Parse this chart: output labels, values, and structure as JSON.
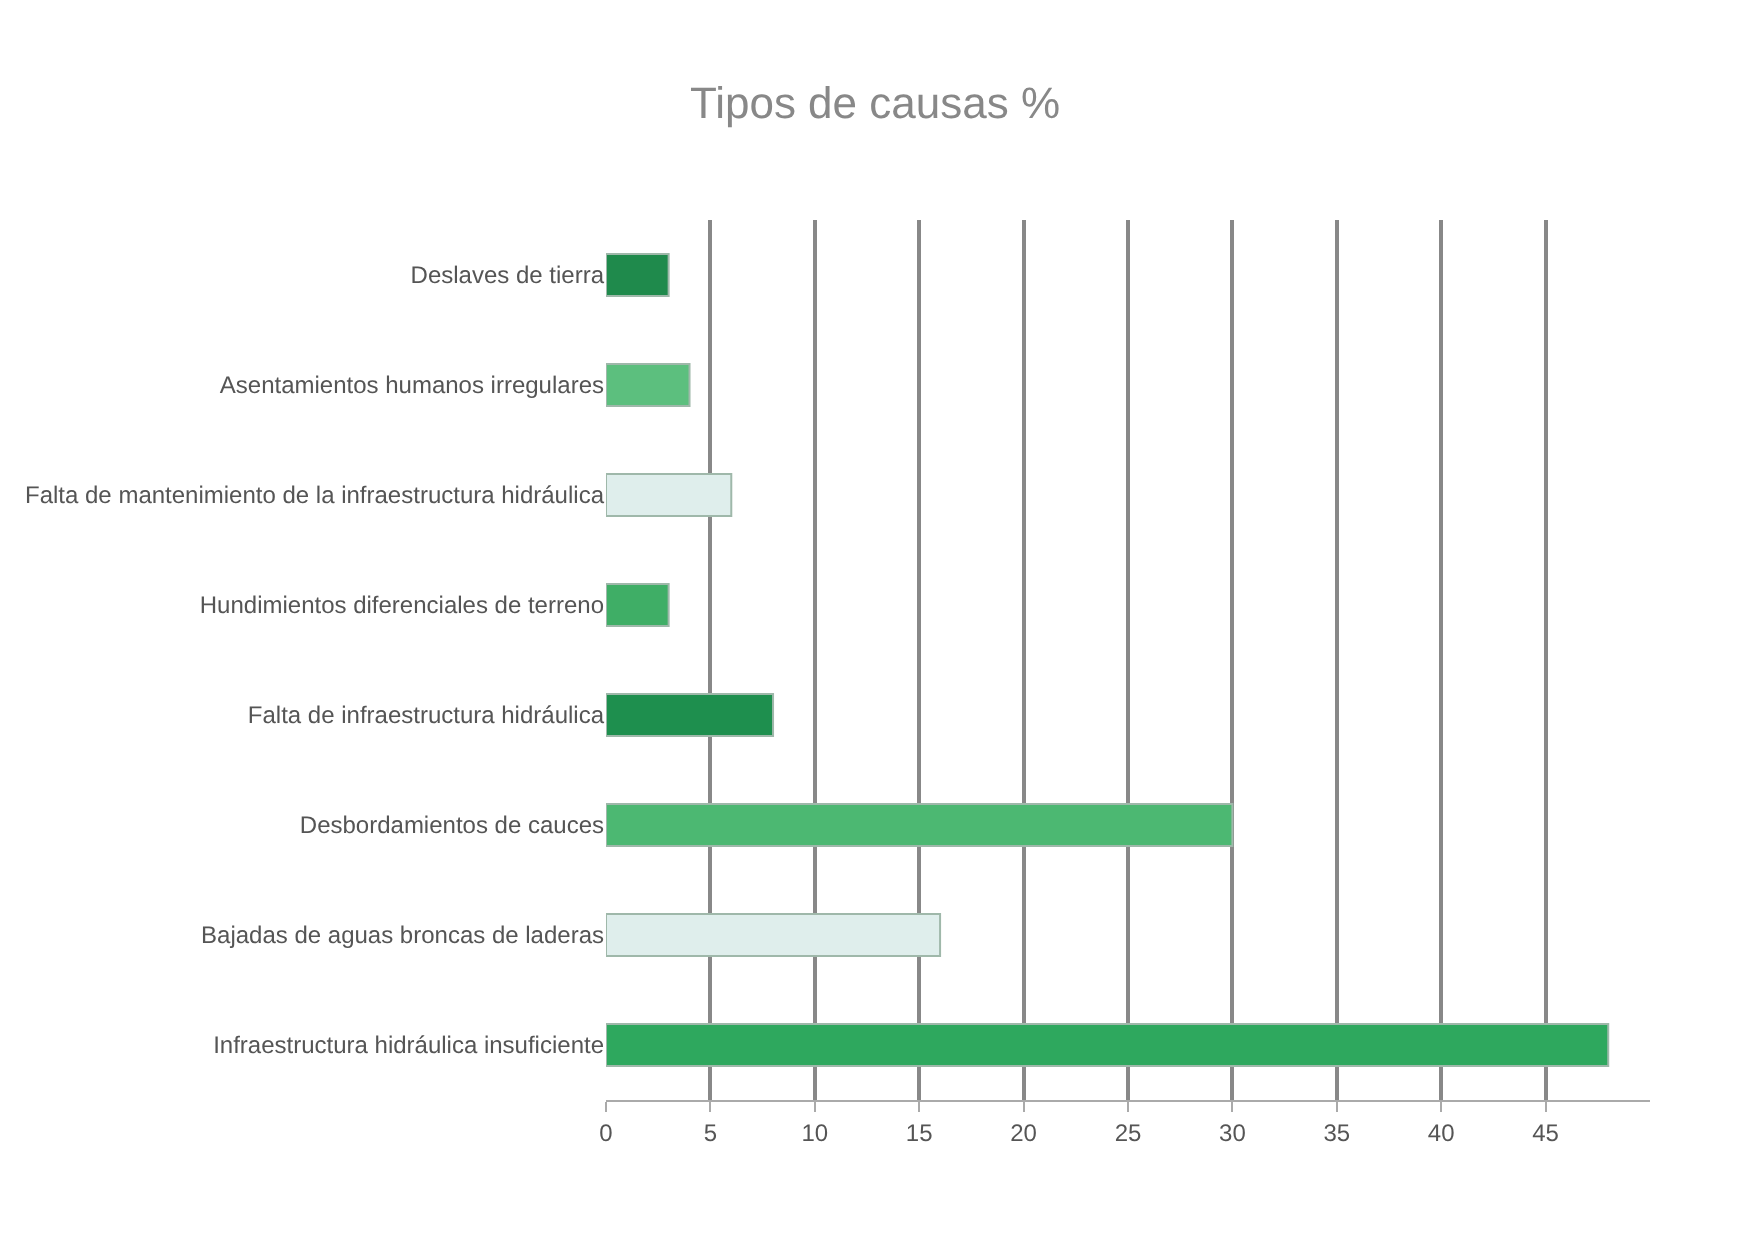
{
  "chart_data": {
    "type": "bar",
    "orientation": "horizontal",
    "title": "Tipos de causas %",
    "categories": [
      "Deslaves de tierra",
      "Asentamientos humanos irregulares",
      "Falta de mantenimiento de la infraestructura hidráulica",
      "Hundimientos diferenciales de terreno",
      "Falta de infraestructura hidráulica",
      "Desbordamientos de cauces",
      "Bajadas de aguas broncas de laderas",
      "Infraestructura hidráulica insuficiente"
    ],
    "values": [
      3,
      4,
      6,
      3,
      8,
      30,
      16,
      48
    ],
    "colors": [
      "#1f8a4c",
      "#5cbf7e",
      "#dfeeec",
      "#3fae66",
      "#1e8f4e",
      "#4cb872",
      "#dfeeec",
      "#2ea85e"
    ],
    "xlim": [
      0,
      50
    ],
    "xticks": [
      0,
      5,
      10,
      15,
      20,
      25,
      30,
      35,
      40,
      45
    ],
    "grid": "x"
  }
}
